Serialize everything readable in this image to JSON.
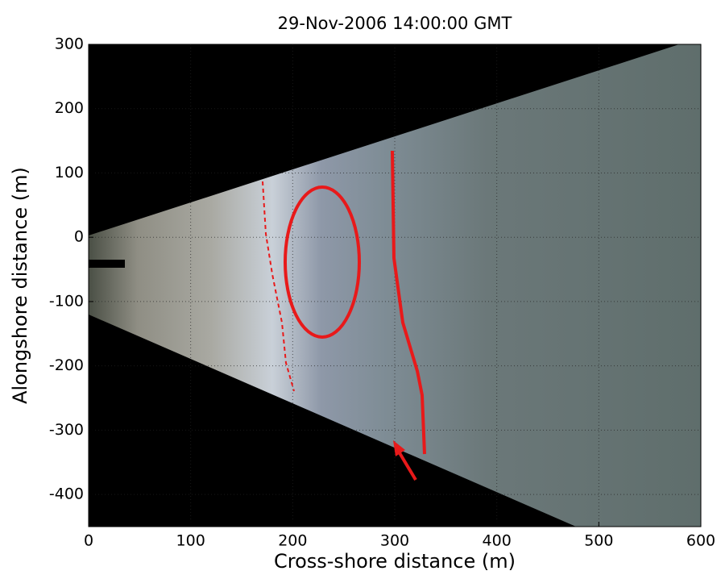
{
  "chart_data": {
    "type": "image",
    "title": "29-Nov-2006 14:00:00 GMT",
    "x_label": "Cross-shore distance (m)",
    "y_label": "Alongshore distance (m)",
    "xlim": [
      0,
      600
    ],
    "xticks": [
      0,
      100,
      200,
      300,
      400,
      500,
      600
    ],
    "ylim": [
      -450,
      300
    ],
    "yticks": [
      -400,
      -300,
      -200,
      -100,
      0,
      100,
      200,
      300
    ],
    "grid": true
  }
}
